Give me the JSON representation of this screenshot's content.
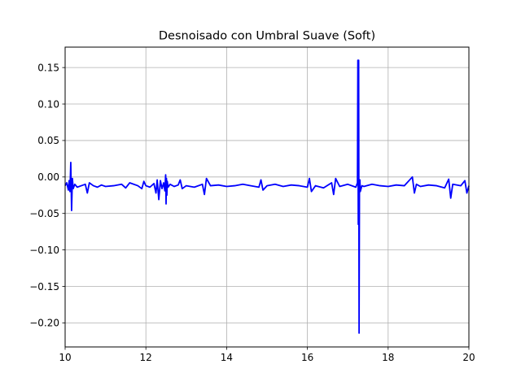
{
  "chart_data": {
    "type": "line",
    "title": "Desnoisado con Umbral Suave (Soft)",
    "xlabel": "",
    "ylabel": "",
    "xlim": [
      10,
      20
    ],
    "ylim": [
      -0.233,
      0.178
    ],
    "grid": true,
    "x_ticks": [
      10,
      12,
      14,
      16,
      18,
      20
    ],
    "x_tick_labels": [
      "10",
      "12",
      "14",
      "16",
      "18",
      "20"
    ],
    "y_ticks": [
      0.15,
      0.1,
      0.05,
      0.0,
      -0.05,
      -0.1,
      -0.15,
      -0.2
    ],
    "y_tick_labels": [
      "0.15",
      "0.10",
      "0.05",
      "0.00",
      "−0.05",
      "−0.10",
      "−0.15",
      "−0.20"
    ],
    "series": [
      {
        "color": "#0000ff",
        "baseline": -0.012,
        "x": [
          10.0,
          10.04,
          10.08,
          10.1,
          10.12,
          10.14,
          10.16,
          10.18,
          10.2,
          10.24,
          10.3,
          10.4,
          10.5,
          10.55,
          10.6,
          10.7,
          10.8,
          10.9,
          11.0,
          11.2,
          11.4,
          11.5,
          11.6,
          11.8,
          11.9,
          11.95,
          12.0,
          12.1,
          12.2,
          12.25,
          12.28,
          12.32,
          12.36,
          12.4,
          12.44,
          12.47,
          12.49,
          12.5,
          12.51,
          12.52,
          12.53,
          12.55,
          12.6,
          12.7,
          12.8,
          12.85,
          12.9,
          13.0,
          13.2,
          13.4,
          13.45,
          13.5,
          13.6,
          13.8,
          14.0,
          14.2,
          14.4,
          14.6,
          14.8,
          14.85,
          14.9,
          15.0,
          15.2,
          15.4,
          15.6,
          15.8,
          16.0,
          16.05,
          16.1,
          16.2,
          16.4,
          16.6,
          16.65,
          16.7,
          16.8,
          17.0,
          17.2,
          17.24,
          17.25,
          17.26,
          17.27,
          17.28,
          17.29,
          17.3,
          17.31,
          17.35,
          17.4,
          17.6,
          17.8,
          18.0,
          18.2,
          18.4,
          18.6,
          18.65,
          18.7,
          18.8,
          19.0,
          19.2,
          19.4,
          19.5,
          19.55,
          19.6,
          19.8,
          19.9,
          19.95,
          20.0
        ],
        "y": [
          -0.012,
          -0.008,
          -0.018,
          -0.005,
          -0.02,
          0.02,
          -0.046,
          -0.002,
          -0.016,
          -0.01,
          -0.014,
          -0.012,
          -0.01,
          -0.022,
          -0.008,
          -0.012,
          -0.014,
          -0.011,
          -0.013,
          -0.012,
          -0.01,
          -0.015,
          -0.008,
          -0.012,
          -0.016,
          -0.006,
          -0.012,
          -0.014,
          -0.009,
          -0.022,
          -0.004,
          -0.031,
          -0.005,
          -0.016,
          -0.008,
          -0.019,
          0.003,
          -0.037,
          -0.002,
          -0.025,
          -0.006,
          -0.014,
          -0.01,
          -0.013,
          -0.011,
          -0.004,
          -0.016,
          -0.012,
          -0.014,
          -0.01,
          -0.024,
          -0.002,
          -0.012,
          -0.011,
          -0.013,
          -0.012,
          -0.01,
          -0.012,
          -0.014,
          -0.004,
          -0.018,
          -0.012,
          -0.01,
          -0.013,
          -0.011,
          -0.012,
          -0.014,
          -0.002,
          -0.02,
          -0.012,
          -0.015,
          -0.008,
          -0.024,
          -0.002,
          -0.013,
          -0.01,
          -0.014,
          -0.008,
          0.16,
          -0.065,
          0.16,
          -0.214,
          -0.01,
          -0.004,
          -0.02,
          -0.012,
          -0.013,
          -0.01,
          -0.012,
          -0.013,
          -0.011,
          -0.012,
          0.0,
          -0.022,
          -0.01,
          -0.013,
          -0.011,
          -0.012,
          -0.015,
          -0.003,
          -0.029,
          -0.01,
          -0.012,
          -0.005,
          -0.022,
          -0.012
        ]
      }
    ]
  }
}
